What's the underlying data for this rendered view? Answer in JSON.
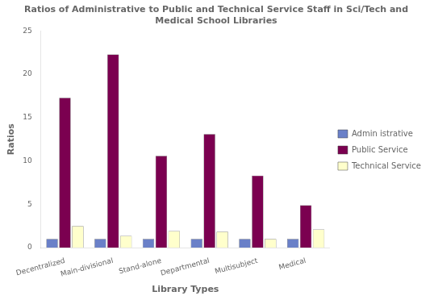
{
  "chart_data": {
    "type": "bar",
    "title": "Ratios of Administrative to Public and Technical Service Staff in Sci/Tech and\nMedical School Libraries",
    "xlabel": "Library Types",
    "ylabel": "Ratios",
    "categories": [
      "Decentralized",
      "Main-divisional",
      "Stand-alone",
      "Departmental",
      "Multisubject",
      "Medical"
    ],
    "series": [
      {
        "name": "Admin istrative",
        "color": "#6a80c8",
        "values": [
          1.0,
          1.0,
          1.0,
          1.0,
          1.0,
          1.0
        ]
      },
      {
        "name": "Public Service",
        "color": "#7b0050",
        "values": [
          17.3,
          22.3,
          10.6,
          13.1,
          8.3,
          4.9
        ]
      },
      {
        "name": "Technical Service",
        "color": "#ffffcc",
        "values": [
          2.5,
          1.35,
          1.9,
          1.85,
          1.0,
          2.1
        ]
      }
    ],
    "ylim": [
      0,
      25
    ],
    "yticks": [
      0,
      5,
      10,
      15,
      20,
      25
    ],
    "grid": false,
    "legend": "right"
  }
}
